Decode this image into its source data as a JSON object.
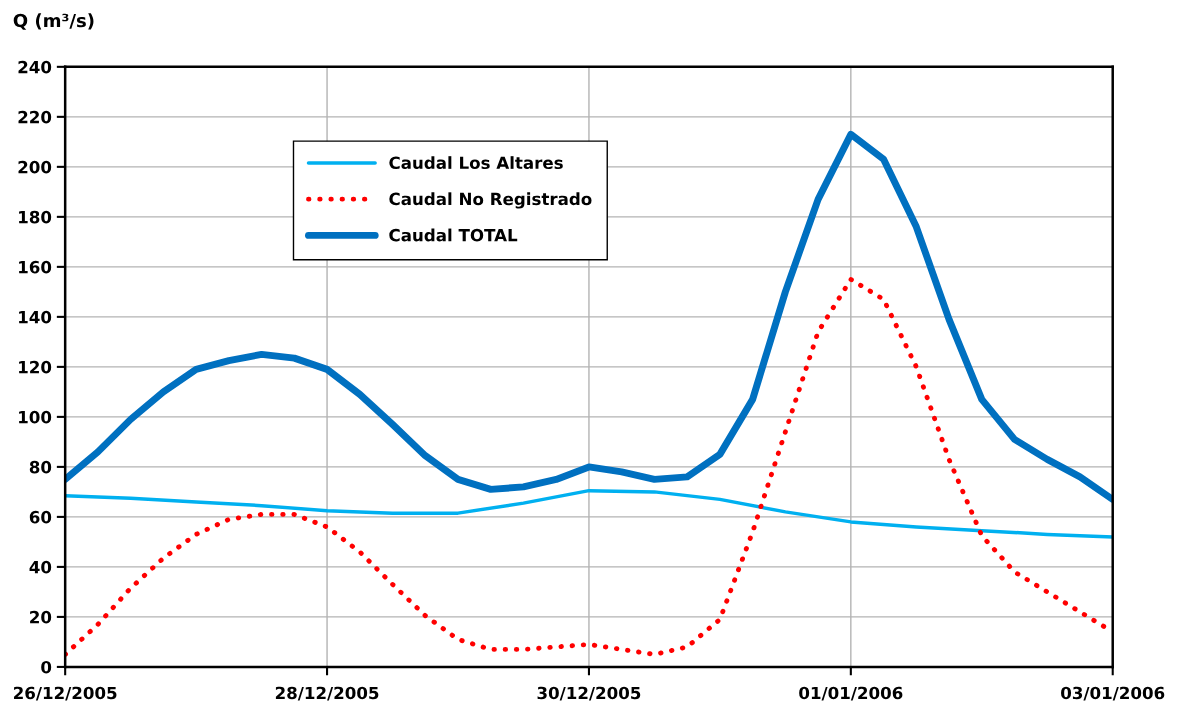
{
  "chart_data": {
    "type": "line",
    "ylabel": "Q (m³/s)",
    "xlim": [
      "2005-12-26",
      "2006-01-03"
    ],
    "xticks": [
      {
        "value": "2005-12-26",
        "label": "26/12/2005"
      },
      {
        "value": "2005-12-28",
        "label": "28/12/2005"
      },
      {
        "value": "2005-12-30",
        "label": "30/12/2005"
      },
      {
        "value": "2006-01-01",
        "label": "01/01/2006"
      },
      {
        "value": "2006-01-03",
        "label": "03/01/2006"
      }
    ],
    "ylim": [
      0,
      240
    ],
    "yticks": [
      0,
      20,
      40,
      60,
      80,
      100,
      120,
      140,
      160,
      180,
      200,
      220,
      240
    ],
    "grid": true,
    "legend": "top left",
    "marker": "none",
    "series": [
      {
        "name": "Caudal Los Altares",
        "color": "#00b0f0",
        "line_style": "solid",
        "x": [
          "2005-12-26T00:00",
          "2005-12-26T12:00",
          "2005-12-27T00:00",
          "2005-12-27T12:00",
          "2005-12-28T00:00",
          "2005-12-28T12:00",
          "2005-12-29T00:00",
          "2005-12-29T12:00",
          "2005-12-30T00:00",
          "2005-12-30T12:00",
          "2005-12-31T00:00",
          "2005-12-31T12:00",
          "2006-01-01T00:00",
          "2006-01-01T12:00",
          "2006-01-02T00:00",
          "2006-01-02T12:00",
          "2006-01-03T00:00"
        ],
        "values": [
          68.5,
          67.5,
          66,
          64.5,
          62.5,
          61.5,
          61.5,
          65.5,
          70.5,
          70,
          67,
          62,
          58,
          56,
          54.5,
          53,
          52
        ]
      },
      {
        "name": "Caudal No Registrado",
        "color": "#ff0000",
        "line_style": "dotted",
        "x": [
          "2005-12-26T00:00",
          "2005-12-26T06:00",
          "2005-12-26T12:00",
          "2005-12-26T18:00",
          "2005-12-27T00:00",
          "2005-12-27T06:00",
          "2005-12-27T12:00",
          "2005-12-27T18:00",
          "2005-12-28T00:00",
          "2005-12-28T06:00",
          "2005-12-28T12:00",
          "2005-12-28T18:00",
          "2005-12-29T00:00",
          "2005-12-29T06:00",
          "2005-12-29T12:00",
          "2005-12-29T18:00",
          "2005-12-30T00:00",
          "2005-12-30T06:00",
          "2005-12-30T12:00",
          "2005-12-30T18:00",
          "2005-12-31T00:00",
          "2005-12-31T06:00",
          "2005-12-31T12:00",
          "2005-12-31T18:00",
          "2006-01-01T00:00",
          "2006-01-01T06:00",
          "2006-01-01T12:00",
          "2006-01-01T18:00",
          "2006-01-02T00:00",
          "2006-01-02T06:00",
          "2006-01-02T12:00",
          "2006-01-02T18:00",
          "2006-01-03T00:00"
        ],
        "values": [
          5,
          17,
          31.5,
          43.5,
          53,
          59,
          61,
          61,
          56,
          46,
          33,
          20.5,
          11,
          7,
          7,
          8,
          9,
          7,
          5,
          8,
          19,
          54,
          94,
          134,
          155,
          147,
          120,
          83,
          52.5,
          38,
          30,
          22,
          14
        ]
      },
      {
        "name": "Caudal TOTAL",
        "color": "#0070c0",
        "line_style": "solid",
        "x": [
          "2005-12-26T00:00",
          "2005-12-26T06:00",
          "2005-12-26T12:00",
          "2005-12-26T18:00",
          "2005-12-27T00:00",
          "2005-12-27T06:00",
          "2005-12-27T12:00",
          "2005-12-27T18:00",
          "2005-12-28T00:00",
          "2005-12-28T06:00",
          "2005-12-28T12:00",
          "2005-12-28T18:00",
          "2005-12-29T00:00",
          "2005-12-29T06:00",
          "2005-12-29T12:00",
          "2005-12-29T18:00",
          "2005-12-30T00:00",
          "2005-12-30T06:00",
          "2005-12-30T12:00",
          "2005-12-30T18:00",
          "2005-12-31T00:00",
          "2005-12-31T06:00",
          "2005-12-31T12:00",
          "2005-12-31T18:00",
          "2006-01-01T00:00",
          "2006-01-01T06:00",
          "2006-01-01T12:00",
          "2006-01-01T18:00",
          "2006-01-02T00:00",
          "2006-01-02T06:00",
          "2006-01-02T12:00",
          "2006-01-02T18:00",
          "2006-01-03T00:00"
        ],
        "values": [
          75,
          86,
          99,
          110,
          119,
          122.5,
          125,
          123.5,
          119,
          109,
          97,
          84.5,
          75,
          71,
          72,
          75,
          80,
          78,
          75,
          76,
          85,
          107,
          150,
          187,
          213,
          203,
          176,
          139,
          107,
          91,
          83,
          76,
          67
        ]
      }
    ]
  }
}
